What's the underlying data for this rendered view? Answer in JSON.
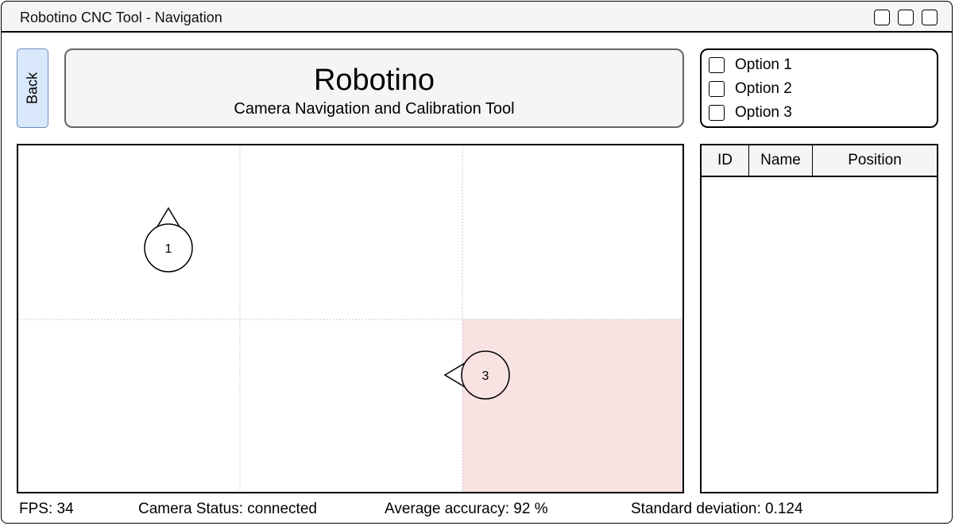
{
  "window": {
    "title": "Robotino CNC Tool - Navigation"
  },
  "back_button": {
    "label": "Back"
  },
  "header": {
    "title": "Robotino",
    "subtitle": "Camera Navigation and Calibration Tool"
  },
  "options": [
    {
      "label": "Option 1",
      "checked": false
    },
    {
      "label": "Option 2",
      "checked": false
    },
    {
      "label": "Option 3",
      "checked": false
    }
  ],
  "map": {
    "grid_columns": 3,
    "grid_rows": 2,
    "highlighted_cell": {
      "column": 3,
      "row": 2,
      "color": "#f8e2e2"
    },
    "robots": [
      {
        "id": "1",
        "heading": "up",
        "cell_column": 1,
        "cell_row": 1
      },
      {
        "id": "3",
        "heading": "left",
        "cell_column": 3,
        "cell_row": 2
      }
    ]
  },
  "table": {
    "columns": [
      "ID",
      "Name",
      "Position"
    ],
    "rows": []
  },
  "status": {
    "fps": "FPS: 34",
    "camera": "Camera Status: connected",
    "accuracy": "Average accuracy: 92 %",
    "deviation": "Standard deviation: 0.124"
  },
  "colors": {
    "back_button_fill": "#dae8fc",
    "back_button_border": "#6c8ebf",
    "highlight_cell": "#f8e2e2",
    "header_fill": "#f5f5f5"
  }
}
